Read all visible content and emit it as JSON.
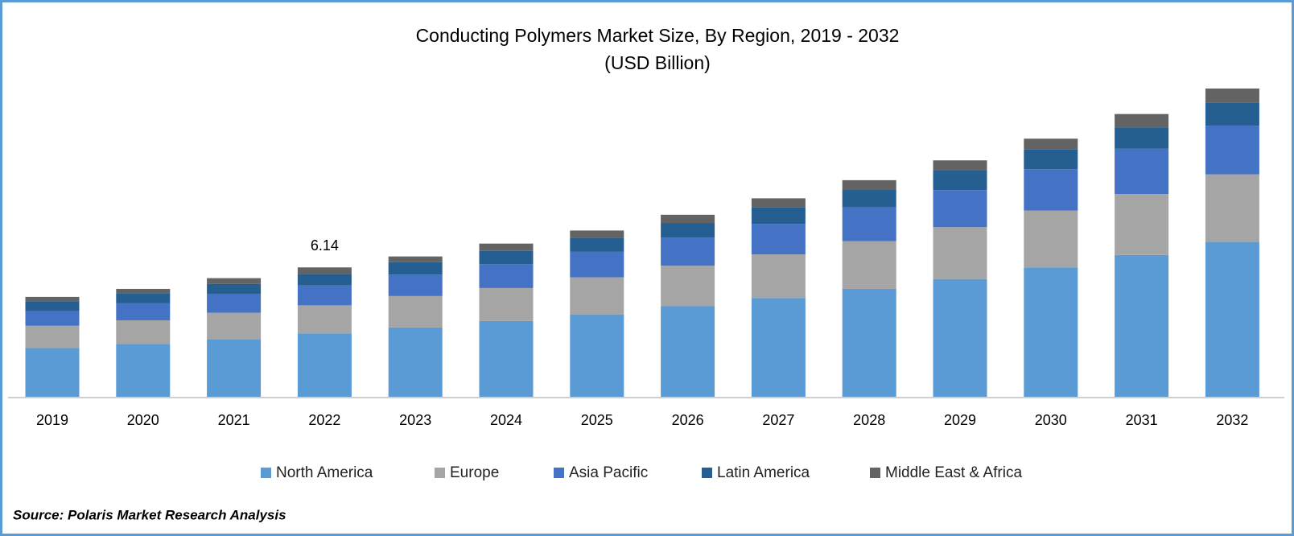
{
  "chart_data": {
    "type": "stacked-bar",
    "title": "Conducting Polymers Market Size, By Region, 2019 - 2032",
    "subtitle": "(USD Billion)",
    "categories": [
      "2019",
      "2020",
      "2021",
      "2022",
      "2023",
      "2024",
      "2025",
      "2026",
      "2027",
      "2028",
      "2029",
      "2030",
      "2031",
      "2032"
    ],
    "series": [
      {
        "name": "North America",
        "color": "#5b9bd5",
        "values": [
          2.31,
          2.5,
          2.74,
          3.01,
          3.29,
          3.6,
          3.91,
          4.3,
          4.69,
          5.12,
          5.59,
          6.14,
          6.73,
          7.35
        ]
      },
      {
        "name": "Europe",
        "color": "#a5a5a5",
        "values": [
          1.06,
          1.13,
          1.25,
          1.33,
          1.49,
          1.56,
          1.76,
          1.92,
          2.07,
          2.27,
          2.46,
          2.7,
          2.89,
          3.21
        ]
      },
      {
        "name": "Asia Pacific",
        "color": "#4472c4",
        "values": [
          0.7,
          0.82,
          0.9,
          0.94,
          1.02,
          1.13,
          1.21,
          1.33,
          1.45,
          1.6,
          1.76,
          1.96,
          2.15,
          2.31
        ]
      },
      {
        "name": "Latin America",
        "color": "#255e91",
        "values": [
          0.47,
          0.47,
          0.47,
          0.55,
          0.59,
          0.63,
          0.66,
          0.7,
          0.78,
          0.86,
          0.94,
          0.94,
          1.02,
          1.1
        ]
      },
      {
        "name": "Middle East & Africa",
        "color": "#636363",
        "values": [
          0.2,
          0.2,
          0.27,
          0.31,
          0.27,
          0.35,
          0.35,
          0.39,
          0.43,
          0.43,
          0.47,
          0.51,
          0.63,
          0.66
        ]
      }
    ],
    "data_labels": [
      {
        "category": "2022",
        "value": 6.14
      }
    ],
    "legend": "bottom",
    "source": "Source: Polaris Market Research Analysis"
  }
}
